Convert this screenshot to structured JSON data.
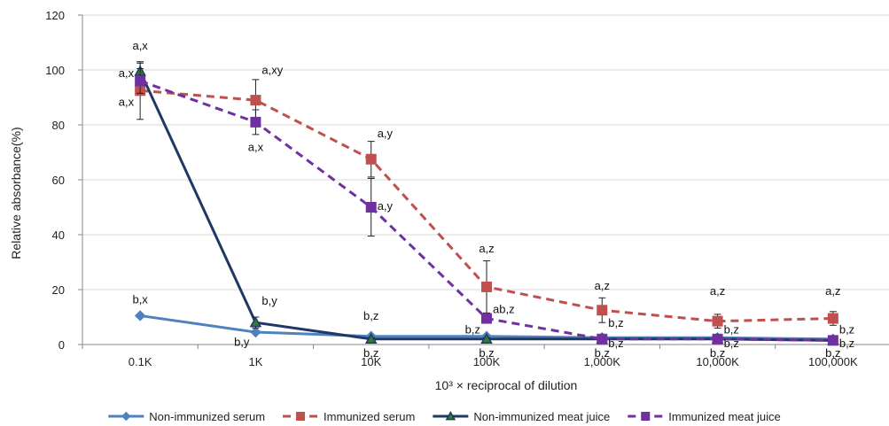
{
  "chart_data": {
    "type": "line",
    "title": "",
    "xlabel": "10³ × reciprocal of dilution",
    "ylabel": "Relative absorbance(%)",
    "ylim": [
      0,
      120
    ],
    "yticks": [
      0,
      20,
      40,
      60,
      80,
      100,
      120
    ],
    "grid": "horizontal",
    "legend_position": "bottom",
    "categories": [
      "0.1K",
      "1K",
      "10K",
      "100K",
      "1,000K",
      "10,000K",
      "100,000K"
    ],
    "series": [
      {
        "name": "Non-immunized serum",
        "color": "#4f81bd",
        "line": "solid",
        "marker": "diamond",
        "values": [
          10.5,
          4.5,
          3.0,
          3.0,
          2.5,
          2.5,
          2.0
        ],
        "errors": [
          0,
          0,
          0,
          0,
          0,
          0,
          0
        ]
      },
      {
        "name": "Immunized serum",
        "color": "#c0504d",
        "line": "dashed",
        "marker": "square",
        "values": [
          92.5,
          89.0,
          67.5,
          21.0,
          12.5,
          8.5,
          9.5
        ],
        "errors": [
          10.5,
          7.5,
          6.5,
          9.5,
          4.5,
          2.5,
          2.5
        ]
      },
      {
        "name": "Non-immunized meat juice",
        "color": "#1f3864",
        "line": "solid",
        "marker": "triangle",
        "values": [
          99.5,
          8.0,
          2.0,
          2.0,
          2.0,
          2.0,
          1.5
        ],
        "errors": [
          3.0,
          2.0,
          0.5,
          0.5,
          0.5,
          0.5,
          0.5
        ]
      },
      {
        "name": "Immunized meat juice",
        "color": "#7030a0",
        "line": "dashed",
        "marker": "square",
        "values": [
          96.0,
          81.0,
          50.0,
          9.5,
          2.0,
          2.0,
          1.5
        ],
        "errors": [
          4.5,
          4.5,
          10.5,
          1.5,
          0.5,
          0.5,
          0.5
        ]
      }
    ],
    "annotations": [
      {
        "text": "a,x",
        "cat": 0,
        "y": 107.5,
        "anchor": "middle"
      },
      {
        "text": "a,x",
        "cat": 0,
        "y": 97.5,
        "anchor": "end"
      },
      {
        "text": "a,x",
        "cat": 0,
        "y": 87.0,
        "anchor": "end"
      },
      {
        "text": "b,x",
        "cat": 0,
        "y": 15.0,
        "anchor": "middle"
      },
      {
        "text": "a,xy",
        "cat": 1,
        "y": 98.5,
        "anchor": "start"
      },
      {
        "text": "a,x",
        "cat": 1,
        "y": 70.5,
        "anchor": "middle"
      },
      {
        "text": "b,y",
        "cat": 1,
        "y": 14.5,
        "anchor": "start"
      },
      {
        "text": "b,y",
        "cat": 1,
        "y": -0.5,
        "anchor": "end"
      },
      {
        "text": "a,y",
        "cat": 2,
        "y": 75.5,
        "anchor": "start"
      },
      {
        "text": "a,y",
        "cat": 2,
        "y": 49.0,
        "anchor": "start"
      },
      {
        "text": "b,z",
        "cat": 2,
        "y": 9.0,
        "anchor": "middle"
      },
      {
        "text": "b,z",
        "cat": 2,
        "y": -4.5,
        "anchor": "middle"
      },
      {
        "text": "a,z",
        "cat": 3,
        "y": 33.5,
        "anchor": "middle"
      },
      {
        "text": "ab,z",
        "cat": 3,
        "y": 11.5,
        "anchor": "start"
      },
      {
        "text": "b,z",
        "cat": 3,
        "y": 4.0,
        "anchor": "end"
      },
      {
        "text": "b,z",
        "cat": 3,
        "y": -4.5,
        "anchor": "middle"
      },
      {
        "text": "a,z",
        "cat": 4,
        "y": 20.0,
        "anchor": "middle"
      },
      {
        "text": "b,z",
        "cat": 4,
        "y": 6.5,
        "anchor": "start"
      },
      {
        "text": "b,z",
        "cat": 4,
        "y": -1.0,
        "anchor": "start"
      },
      {
        "text": "b,z",
        "cat": 4,
        "y": -4.5,
        "anchor": "middle"
      },
      {
        "text": "a,z",
        "cat": 5,
        "y": 18.0,
        "anchor": "middle"
      },
      {
        "text": "b,z",
        "cat": 5,
        "y": 4.0,
        "anchor": "start"
      },
      {
        "text": "b,z",
        "cat": 5,
        "y": -1.0,
        "anchor": "start"
      },
      {
        "text": "b,z",
        "cat": 5,
        "y": -4.5,
        "anchor": "middle"
      },
      {
        "text": "a,z",
        "cat": 6,
        "y": 18.0,
        "anchor": "middle"
      },
      {
        "text": "b,z",
        "cat": 6,
        "y": 4.0,
        "anchor": "start"
      },
      {
        "text": "b,z",
        "cat": 6,
        "y": -1.0,
        "anchor": "start"
      },
      {
        "text": "b,z",
        "cat": 6,
        "y": -4.5,
        "anchor": "middle"
      }
    ]
  }
}
